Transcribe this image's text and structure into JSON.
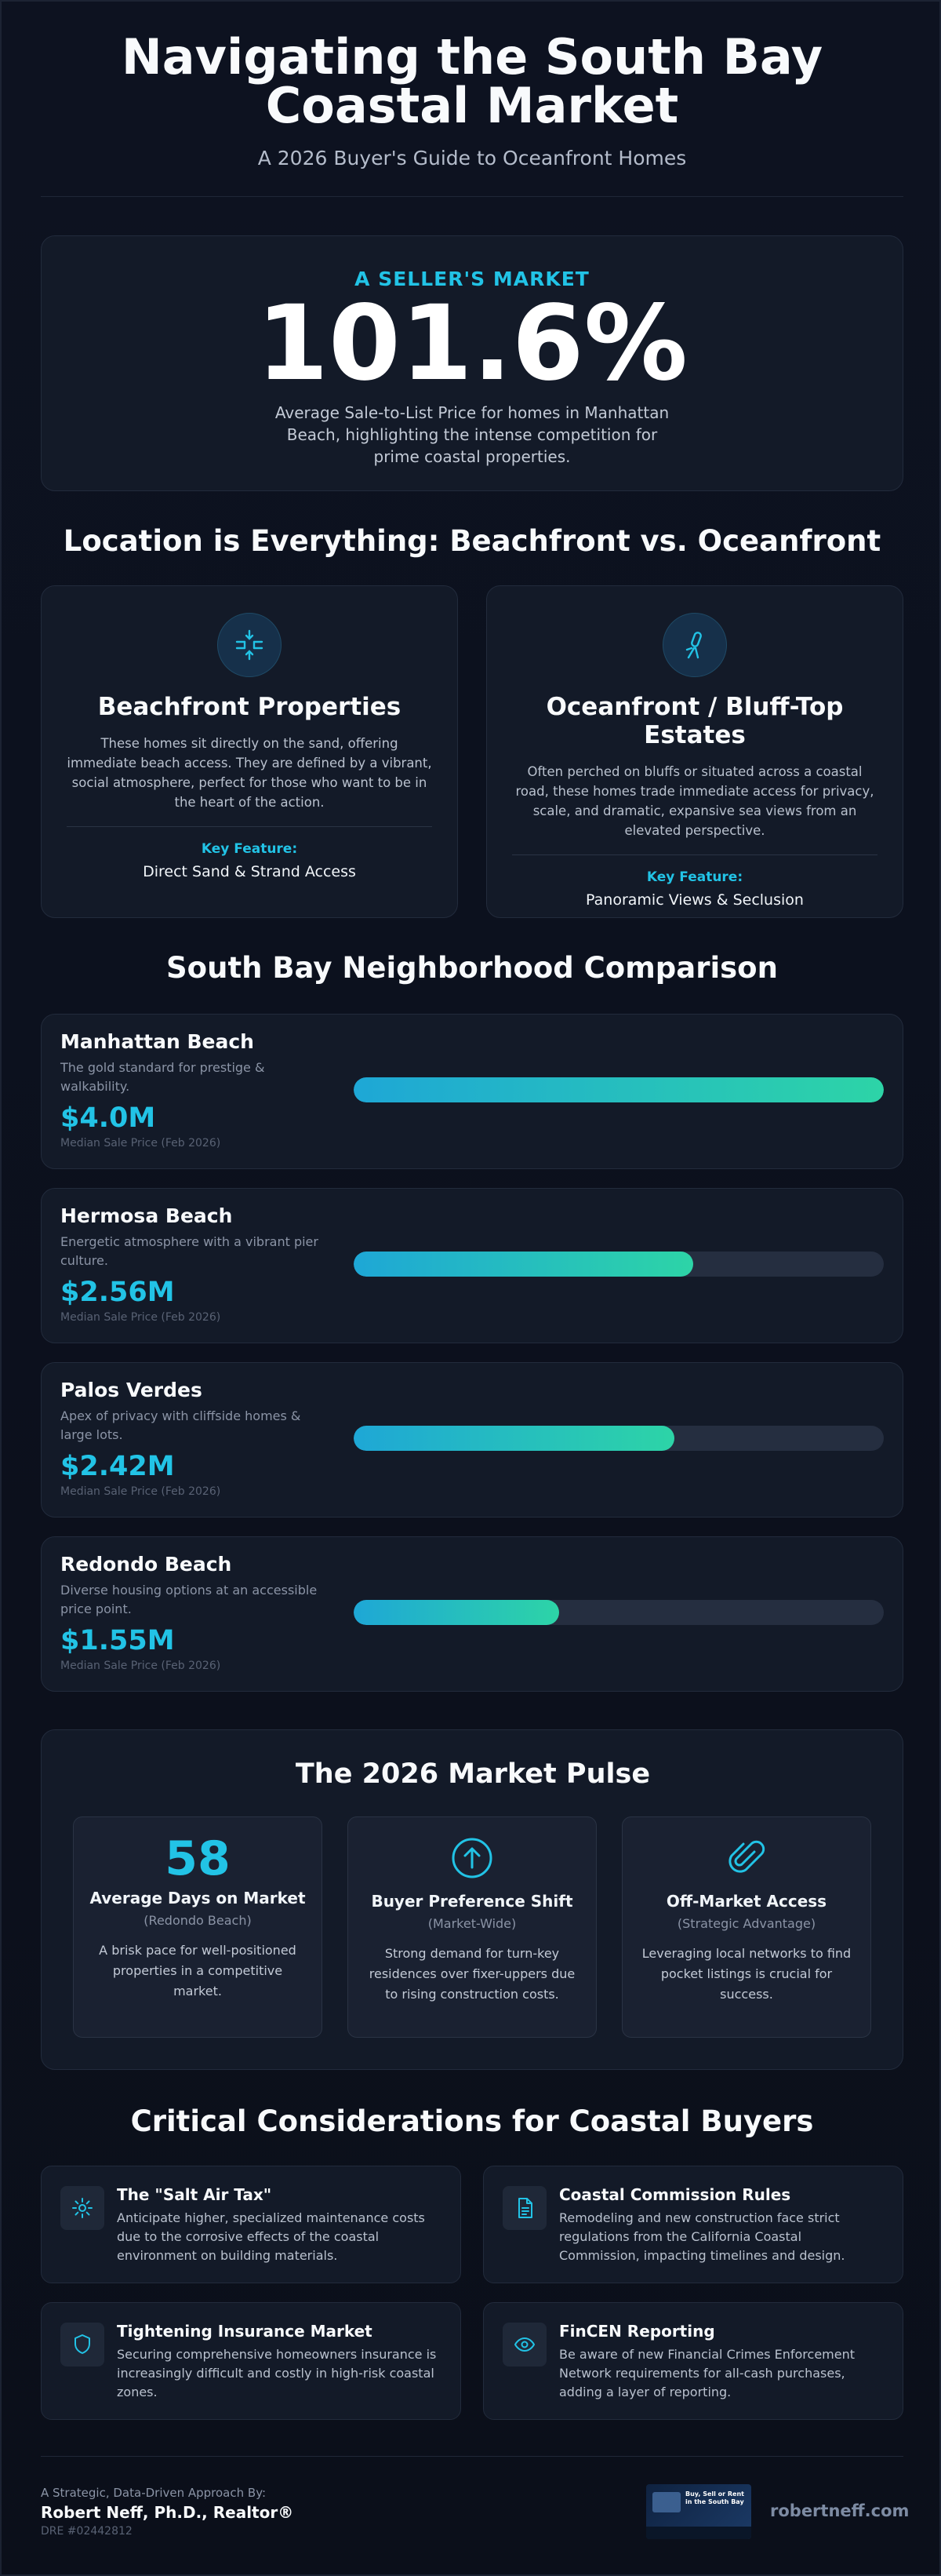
{
  "header": {
    "title": "Navigating the South Bay Coastal Market",
    "subtitle": "A 2026 Buyer's Guide to Oceanfront Homes"
  },
  "hero": {
    "kicker": "A SELLER'S MARKET",
    "stat": "101.6%",
    "description": "Average Sale-to-List Price for homes in Manhattan Beach, highlighting the intense competition for prime coastal properties."
  },
  "location": {
    "heading": "Location is Everything: Beachfront vs. Oceanfront",
    "cards": [
      {
        "icon": "arrows-in-out-icon",
        "title": "Beachfront Properties",
        "description": "These homes sit directly on the sand, offering immediate beach access. They are defined by a vibrant, social atmosphere, perfect for those who want to be in the heart of the action.",
        "key_label": "Key Feature:",
        "key_value": "Direct Sand & Strand Access"
      },
      {
        "icon": "telescope-icon",
        "title": "Oceanfront / Bluff-Top Estates",
        "description": "Often perched on bluffs or situated across a coastal road, these homes trade immediate access for privacy, scale, and dramatic, expansive sea views from an elevated perspective.",
        "key_label": "Key Feature:",
        "key_value": "Panoramic Views & Seclusion"
      }
    ]
  },
  "neighborhoods": {
    "heading": "South Bay Neighborhood Comparison",
    "price_caption": "Median Sale Price (Feb 2026)",
    "items": [
      {
        "name": "Manhattan Beach",
        "description": "The gold standard for prestige & walkability.",
        "price": "$4.0M",
        "value_m": 4.0
      },
      {
        "name": "Hermosa Beach",
        "description": "Energetic atmosphere with a vibrant pier culture.",
        "price": "$2.56M",
        "value_m": 2.56
      },
      {
        "name": "Palos Verdes",
        "description": "Apex of privacy with cliffside homes & large lots.",
        "price": "$2.42M",
        "value_m": 2.42
      },
      {
        "name": "Redondo Beach",
        "description": "Diverse housing options at an accessible price point.",
        "price": "$1.55M",
        "value_m": 1.55
      }
    ],
    "max_value_m": 4.0
  },
  "pulse": {
    "heading": "The 2026 Market Pulse",
    "cards": [
      {
        "number": "58",
        "title": "Average Days on Market",
        "subtitle": "(Redondo Beach)",
        "description": "A brisk pace for well-positioned properties in a competitive market."
      },
      {
        "icon": "arrow-up-circle-icon",
        "title": "Buyer Preference Shift",
        "subtitle": "(Market-Wide)",
        "description": "Strong demand for turn-key residences over fixer-uppers due to rising construction costs."
      },
      {
        "icon": "paperclip-icon",
        "title": "Off-Market Access",
        "subtitle": "(Strategic Advantage)",
        "description": "Leveraging local networks to find pocket listings is crucial for success."
      }
    ]
  },
  "considerations": {
    "heading": "Critical Considerations for Coastal Buyers",
    "items": [
      {
        "icon": "gear-cog-icon",
        "title": "The \"Salt Air Tax\"",
        "description": "Anticipate higher, specialized maintenance costs due to the corrosive effects of the coastal environment on building materials."
      },
      {
        "icon": "document-icon",
        "title": "Coastal Commission Rules",
        "description": "Remodeling and new construction face strict regulations from the California Coastal Commission, impacting timelines and design."
      },
      {
        "icon": "shield-icon",
        "title": "Tightening Insurance Market",
        "description": "Securing comprehensive homeowners insurance is increasingly difficult and costly in high-risk coastal zones."
      },
      {
        "icon": "eye-icon",
        "title": "FinCEN Reporting",
        "description": "Be aware of new Financial Crimes Enforcement Network requirements for all-cash purchases, adding a layer of reporting."
      }
    ]
  },
  "footer": {
    "kicker": "A Strategic, Data-Driven Approach By:",
    "name": "Robert Neff, Ph.D., Realtor®",
    "dre": "DRE #02442812",
    "thumbnail_text": "Buy, Sell or Rent in the South Bay",
    "url": "robertneff.com"
  },
  "colors": {
    "accent": "#22c3e6",
    "bar_start": "#1ea7d6",
    "bar_end": "#2dd4a7",
    "background": "#0c111d"
  }
}
